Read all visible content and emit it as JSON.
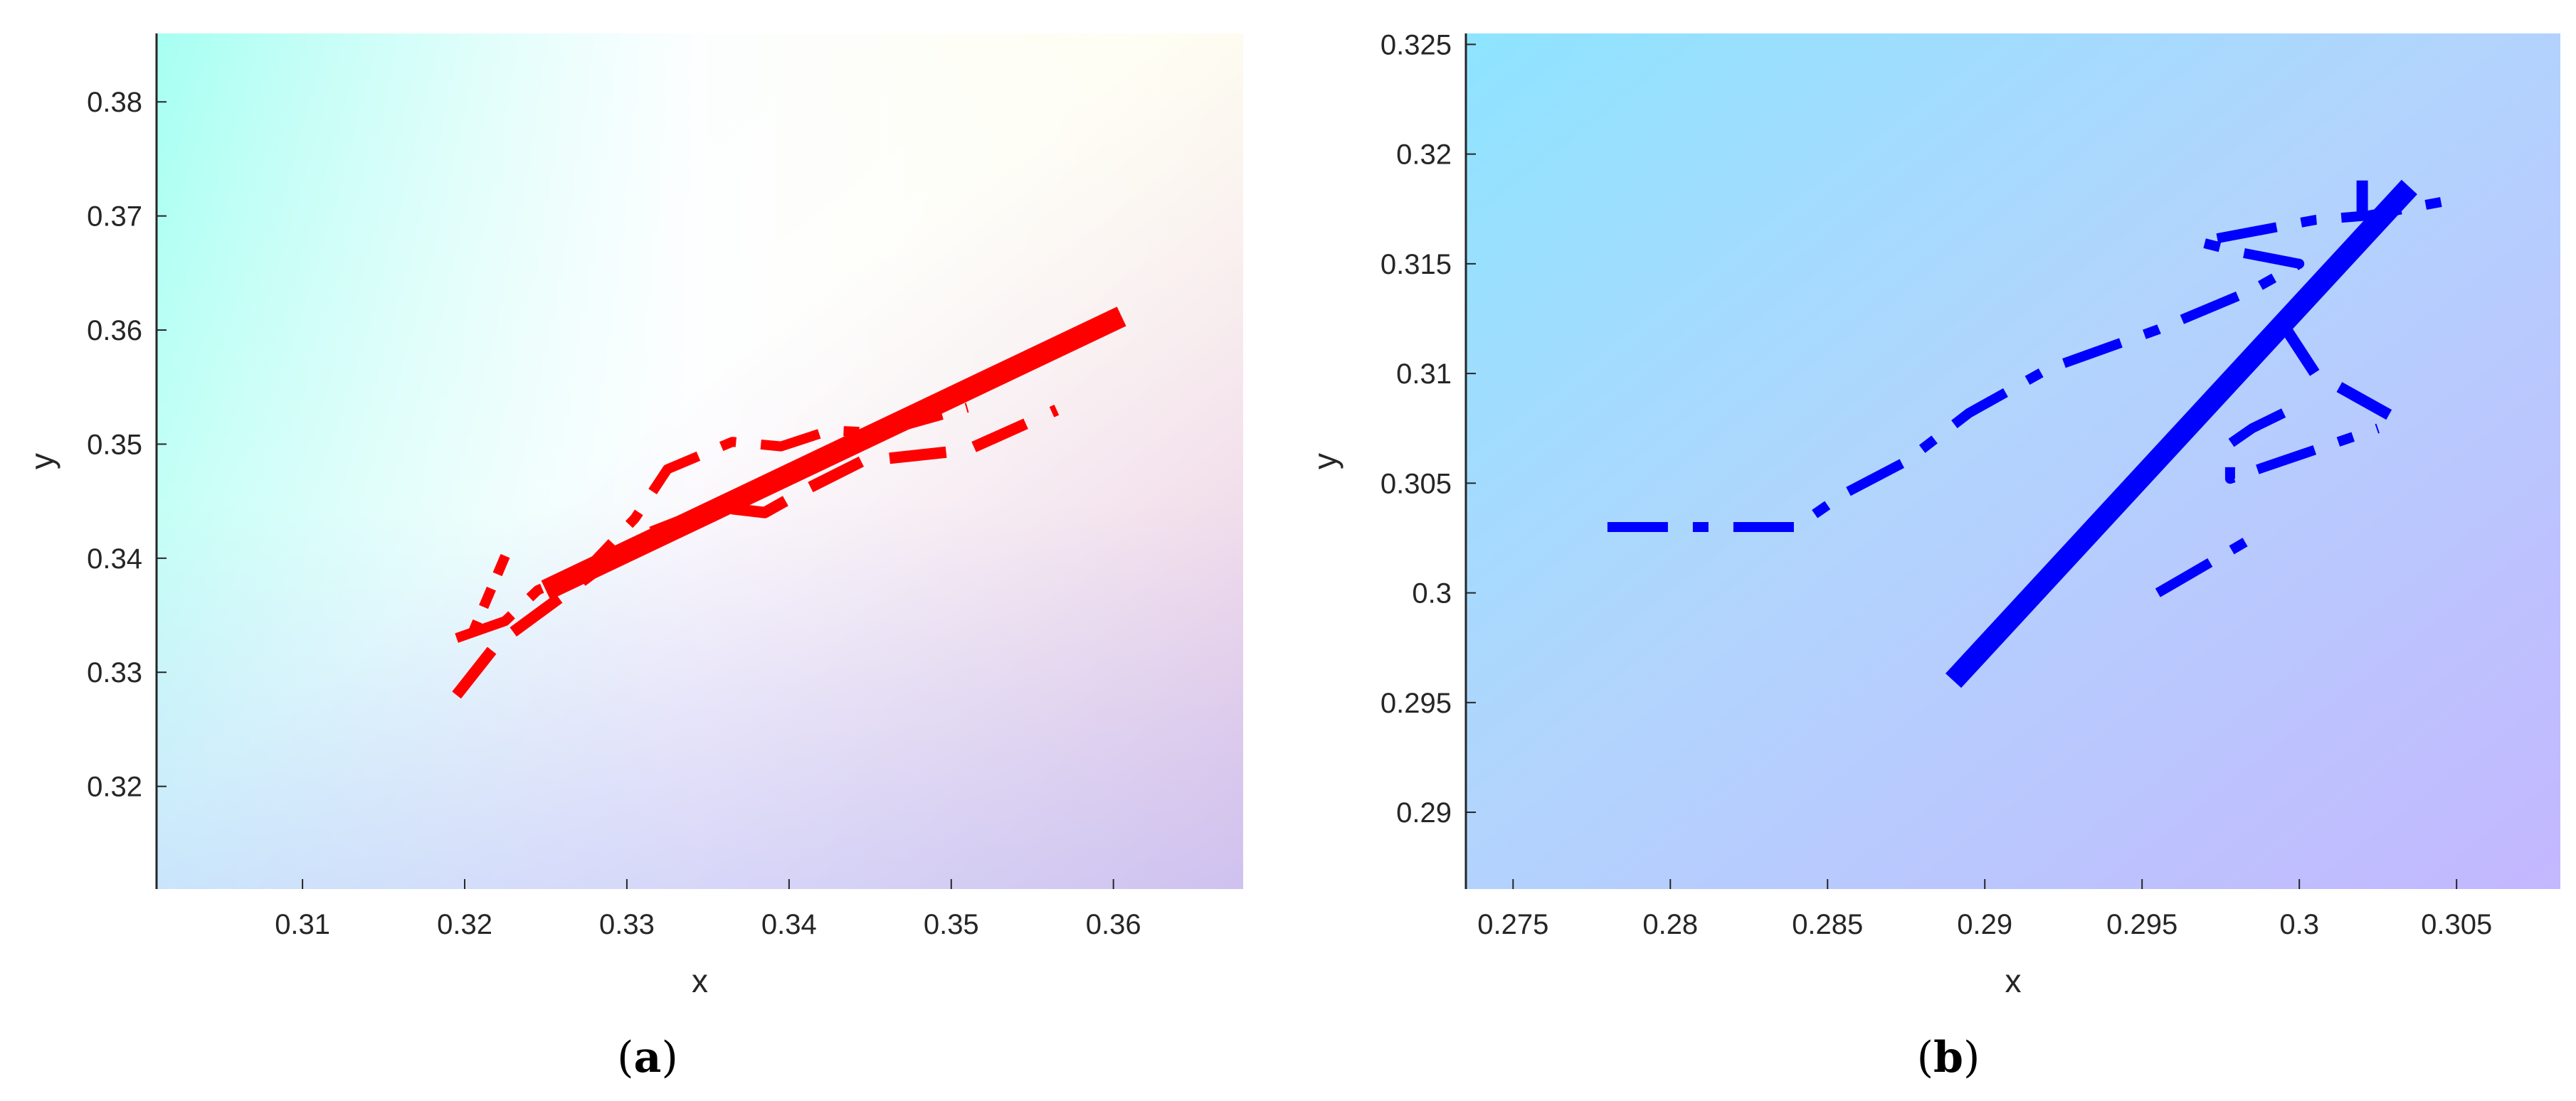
{
  "chart_data": [
    {
      "type": "line",
      "caption": "a",
      "title": "",
      "xlabel": "x",
      "ylabel": "y",
      "xlim": [
        0.301,
        0.368
      ],
      "ylim": [
        0.311,
        0.386
      ],
      "xticks": [
        0.31,
        0.32,
        0.33,
        0.34,
        0.35,
        0.36
      ],
      "yticks": [
        0.32,
        0.33,
        0.34,
        0.35,
        0.36,
        0.37,
        0.38
      ],
      "xtick_labels": [
        "0.31",
        "0.32",
        "0.33",
        "0.34",
        "0.35",
        "0.36"
      ],
      "ytick_labels": [
        "0.32",
        "0.33",
        "0.34",
        "0.35",
        "0.36",
        "0.37",
        "0.38"
      ],
      "background": "gradient",
      "grid": false,
      "series": [
        {
          "style": "solid",
          "color": "#ff0000",
          "points": [
            [
              0.325,
              0.3372
            ],
            [
              0.3605,
              0.3612
            ]
          ]
        },
        {
          "style": "dashed",
          "color": "#ff0000",
          "points": [
            [
              0.3195,
              0.328
            ],
            [
              0.322,
              0.3325
            ],
            [
              0.3265,
              0.3372
            ],
            [
              0.331,
              0.342
            ],
            [
              0.3355,
              0.3445
            ],
            [
              0.3385,
              0.344
            ],
            [
              0.341,
              0.346
            ],
            [
              0.3445,
              0.3485
            ],
            [
              0.351,
              0.3495
            ],
            [
              0.3565,
              0.353
            ]
          ]
        },
        {
          "style": "dashdot",
          "color": "#ff0000",
          "points": [
            [
              0.3195,
              0.333
            ],
            [
              0.3225,
              0.3345
            ],
            [
              0.3245,
              0.3372
            ],
            [
              0.3275,
              0.339
            ],
            [
              0.3305,
              0.3435
            ],
            [
              0.3325,
              0.3478
            ],
            [
              0.3365,
              0.3502
            ],
            [
              0.3395,
              0.3498
            ],
            [
              0.3425,
              0.3512
            ],
            [
              0.3455,
              0.351
            ],
            [
              0.351,
              0.3532
            ]
          ]
        },
        {
          "style": "dotted",
          "color": "#ff0000",
          "points": [
            [
              0.3225,
              0.3402
            ],
            [
              0.3205,
              0.3335
            ]
          ]
        }
      ]
    },
    {
      "type": "line",
      "caption": "b",
      "title": "",
      "xlabel": "x",
      "ylabel": "y",
      "xlim": [
        0.2735,
        0.3083
      ],
      "ylim": [
        0.2865,
        0.3255
      ],
      "xticks": [
        0.275,
        0.28,
        0.285,
        0.29,
        0.295,
        0.3,
        0.305
      ],
      "yticks": [
        0.29,
        0.295,
        0.3,
        0.305,
        0.31,
        0.315,
        0.32,
        0.325
      ],
      "xtick_labels": [
        "0.275",
        "0.28",
        "0.285",
        "0.29",
        "0.295",
        "0.3",
        "0.305"
      ],
      "ytick_labels": [
        "0.29",
        "0.295",
        "0.3",
        "0.305",
        "0.31",
        "0.315",
        "0.32",
        "0.325"
      ],
      "background": "gradient",
      "grid": false,
      "series": [
        {
          "style": "solid",
          "color": "#0000ff",
          "points": [
            [
              0.289,
              0.296
            ],
            [
              0.3035,
              0.3185
            ]
          ]
        },
        {
          "style": "dashed",
          "color": "#0000ff",
          "points": [
            [
              0.2995,
              0.3122
            ],
            [
              0.3005,
              0.31
            ],
            [
              0.303,
              0.308
            ]
          ]
        },
        {
          "style": "dashdot",
          "color": "#0000ff",
          "points": [
            [
              0.2995,
              0.3082
            ],
            [
              0.2985,
              0.3075
            ],
            [
              0.2978,
              0.3068
            ],
            [
              0.2978,
              0.3052
            ],
            [
              0.3025,
              0.3075
            ]
          ]
        },
        {
          "style": "dashdot",
          "color": "#0000ff",
          "points": [
            [
              0.2955,
              0.3
            ],
            [
              0.2985,
              0.3025
            ]
          ]
        },
        {
          "style": "dashdot",
          "color": "#0000ff",
          "points": [
            [
              0.278,
              0.303
            ],
            [
              0.284,
              0.303
            ],
            [
              0.2855,
              0.3045
            ],
            [
              0.2875,
              0.306
            ],
            [
              0.2895,
              0.3082
            ],
            [
              0.292,
              0.3102
            ],
            [
              0.2955,
              0.312
            ],
            [
              0.2985,
              0.3138
            ],
            [
              0.3,
              0.315
            ],
            [
              0.2982,
              0.3155
            ],
            [
              0.2968,
              0.316
            ],
            [
              0.3005,
              0.317
            ],
            [
              0.3022,
              0.3172
            ],
            [
              0.3052,
              0.318
            ]
          ]
        },
        {
          "style": "dashed",
          "color": "#0000ff",
          "points": [
            [
              0.302,
              0.3188
            ],
            [
              0.302,
              0.317
            ]
          ]
        }
      ]
    }
  ]
}
